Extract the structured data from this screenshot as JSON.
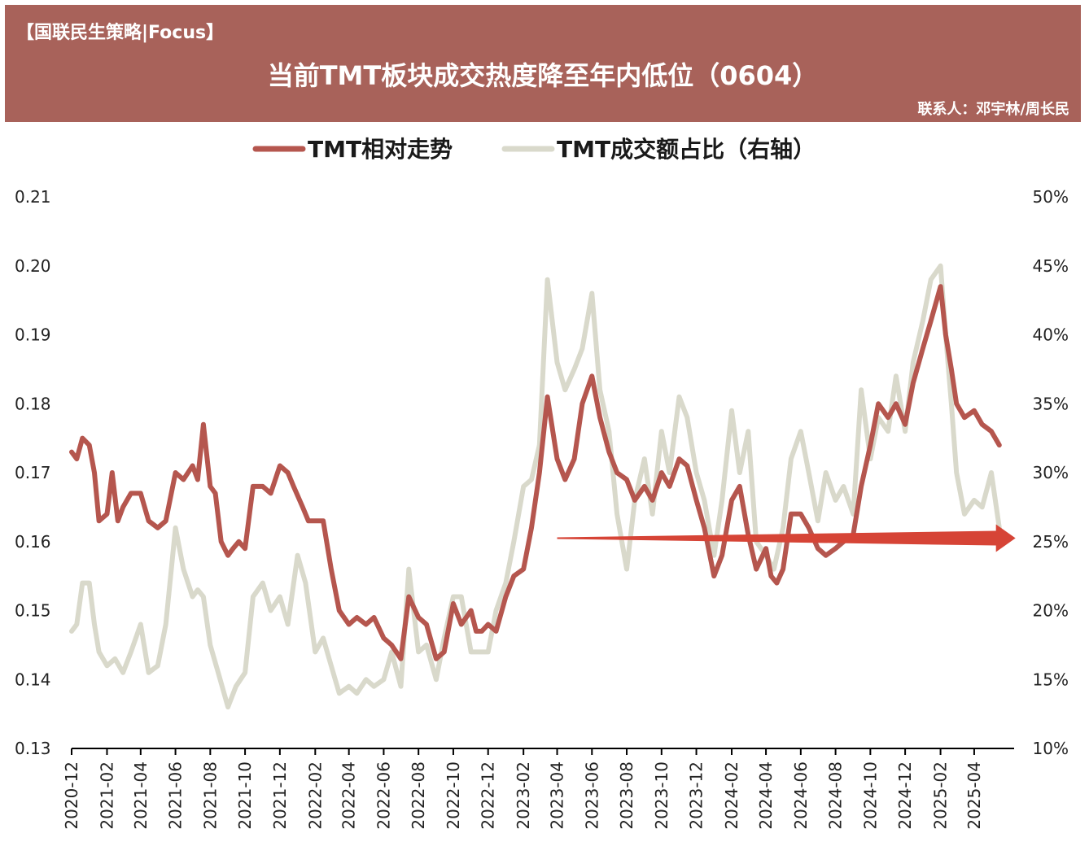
{
  "header": {
    "tag": "【国联民生策略|Focus】",
    "title": "当前TMT板块成交热度降至年内低位（0604）",
    "contact": "联系人：邓宇林/周长民"
  },
  "colors": {
    "banner": "#A8625A",
    "series_relative": "#B5564E",
    "series_share": "#D9D9CB",
    "arrow": "#D64436"
  },
  "chart_data": {
    "type": "line",
    "title": "当前TMT板块成交热度降至年内低位（0604）",
    "legend_position": "top",
    "grid": false,
    "x_labels": [
      "2020-12",
      "2021-02",
      "2021-04",
      "2021-06",
      "2021-08",
      "2021-10",
      "2021-12",
      "2022-02",
      "2022-04",
      "2022-06",
      "2022-08",
      "2022-10",
      "2022-12",
      "2023-02",
      "2023-04",
      "2023-06",
      "2023-08",
      "2023-10",
      "2023-12",
      "2024-02",
      "2024-04",
      "2024-06",
      "2024-08",
      "2024-10",
      "2024-12",
      "2025-02",
      "2025-04"
    ],
    "y_left": {
      "min": 0.13,
      "max": 0.21,
      "ticks": [
        "0.21",
        "0.20",
        "0.19",
        "0.18",
        "0.17",
        "0.16",
        "0.15",
        "0.14",
        "0.13"
      ]
    },
    "y_right": {
      "min": 10,
      "max": 50,
      "ticks": [
        "50%",
        "45%",
        "40%",
        "35%",
        "30%",
        "25%",
        "20%",
        "15%",
        "10%"
      ]
    },
    "series": [
      {
        "name": "TMT相对走势",
        "axis": "left",
        "color": "#B5564E",
        "points": [
          [
            "2020-12-01",
            0.173
          ],
          [
            "2020-12-10",
            0.172
          ],
          [
            "2020-12-20",
            0.175
          ],
          [
            "2021-01-01",
            0.174
          ],
          [
            "2021-01-10",
            0.17
          ],
          [
            "2021-01-18",
            0.163
          ],
          [
            "2021-02-01",
            0.164
          ],
          [
            "2021-02-10",
            0.17
          ],
          [
            "2021-02-20",
            0.163
          ],
          [
            "2021-03-01",
            0.165
          ],
          [
            "2021-03-15",
            0.167
          ],
          [
            "2021-04-01",
            0.167
          ],
          [
            "2021-04-15",
            0.163
          ],
          [
            "2021-05-01",
            0.162
          ],
          [
            "2021-05-15",
            0.163
          ],
          [
            "2021-06-01",
            0.17
          ],
          [
            "2021-06-15",
            0.169
          ],
          [
            "2021-07-01",
            0.171
          ],
          [
            "2021-07-10",
            0.169
          ],
          [
            "2021-07-20",
            0.177
          ],
          [
            "2021-08-01",
            0.168
          ],
          [
            "2021-08-10",
            0.167
          ],
          [
            "2021-08-20",
            0.16
          ],
          [
            "2021-09-01",
            0.158
          ],
          [
            "2021-09-10",
            0.159
          ],
          [
            "2021-09-20",
            0.16
          ],
          [
            "2021-10-01",
            0.159
          ],
          [
            "2021-10-15",
            0.168
          ],
          [
            "2021-11-01",
            0.168
          ],
          [
            "2021-11-15",
            0.167
          ],
          [
            "2021-12-01",
            0.171
          ],
          [
            "2021-12-15",
            0.17
          ],
          [
            "2021-12-25",
            0.168
          ],
          [
            "2022-01-10",
            0.165
          ],
          [
            "2022-01-20",
            0.163
          ],
          [
            "2022-02-01",
            0.163
          ],
          [
            "2022-02-15",
            0.163
          ],
          [
            "2022-03-01",
            0.156
          ],
          [
            "2022-03-15",
            0.15
          ],
          [
            "2022-04-01",
            0.148
          ],
          [
            "2022-04-15",
            0.149
          ],
          [
            "2022-05-01",
            0.148
          ],
          [
            "2022-05-15",
            0.149
          ],
          [
            "2022-06-01",
            0.146
          ],
          [
            "2022-06-15",
            0.145
          ],
          [
            "2022-07-01",
            0.143
          ],
          [
            "2022-07-15",
            0.152
          ],
          [
            "2022-08-01",
            0.149
          ],
          [
            "2022-08-15",
            0.148
          ],
          [
            "2022-09-01",
            0.143
          ],
          [
            "2022-09-15",
            0.144
          ],
          [
            "2022-10-01",
            0.151
          ],
          [
            "2022-10-15",
            0.148
          ],
          [
            "2022-11-01",
            0.15
          ],
          [
            "2022-11-10",
            0.147
          ],
          [
            "2022-11-20",
            0.147
          ],
          [
            "2022-12-01",
            0.148
          ],
          [
            "2022-12-15",
            0.147
          ],
          [
            "2023-01-01",
            0.152
          ],
          [
            "2023-01-15",
            0.155
          ],
          [
            "2023-02-01",
            0.156
          ],
          [
            "2023-02-15",
            0.162
          ],
          [
            "2023-03-01",
            0.17
          ],
          [
            "2023-03-15",
            0.181
          ],
          [
            "2023-04-01",
            0.172
          ],
          [
            "2023-04-15",
            0.169
          ],
          [
            "2023-05-01",
            0.172
          ],
          [
            "2023-05-15",
            0.18
          ],
          [
            "2023-06-01",
            0.184
          ],
          [
            "2023-06-15",
            0.178
          ],
          [
            "2023-07-01",
            0.173
          ],
          [
            "2023-07-15",
            0.17
          ],
          [
            "2023-08-01",
            0.169
          ],
          [
            "2023-08-15",
            0.166
          ],
          [
            "2023-09-01",
            0.168
          ],
          [
            "2023-09-15",
            0.166
          ],
          [
            "2023-10-01",
            0.17
          ],
          [
            "2023-10-15",
            0.168
          ],
          [
            "2023-11-01",
            0.172
          ],
          [
            "2023-11-15",
            0.171
          ],
          [
            "2023-12-01",
            0.166
          ],
          [
            "2023-12-15",
            0.162
          ],
          [
            "2024-01-01",
            0.155
          ],
          [
            "2024-01-15",
            0.158
          ],
          [
            "2024-02-01",
            0.166
          ],
          [
            "2024-02-15",
            0.168
          ],
          [
            "2024-03-01",
            0.161
          ],
          [
            "2024-03-15",
            0.156
          ],
          [
            "2024-04-01",
            0.159
          ],
          [
            "2024-04-10",
            0.155
          ],
          [
            "2024-04-20",
            0.154
          ],
          [
            "2024-05-01",
            0.156
          ],
          [
            "2024-05-15",
            0.164
          ],
          [
            "2024-06-01",
            0.164
          ],
          [
            "2024-06-15",
            0.162
          ],
          [
            "2024-07-01",
            0.159
          ],
          [
            "2024-07-15",
            0.158
          ],
          [
            "2024-08-01",
            0.159
          ],
          [
            "2024-08-15",
            0.16
          ],
          [
            "2024-09-01",
            0.161
          ],
          [
            "2024-09-15",
            0.168
          ],
          [
            "2024-10-01",
            0.174
          ],
          [
            "2024-10-15",
            0.18
          ],
          [
            "2024-11-01",
            0.178
          ],
          [
            "2024-11-15",
            0.18
          ],
          [
            "2024-12-01",
            0.177
          ],
          [
            "2024-12-15",
            0.183
          ],
          [
            "2025-01-01",
            0.188
          ],
          [
            "2025-01-15",
            0.192
          ],
          [
            "2025-02-01",
            0.197
          ],
          [
            "2025-02-10",
            0.19
          ],
          [
            "2025-02-20",
            0.185
          ],
          [
            "2025-03-01",
            0.18
          ],
          [
            "2025-03-15",
            0.178
          ],
          [
            "2025-04-01",
            0.179
          ],
          [
            "2025-04-15",
            0.177
          ],
          [
            "2025-05-01",
            0.176
          ],
          [
            "2025-05-15",
            0.174
          ]
        ]
      },
      {
        "name": "TMT成交额占比（右轴）",
        "axis": "right",
        "color": "#D9D9CB",
        "points": [
          [
            "2020-12-01",
            18.5
          ],
          [
            "2020-12-10",
            19.0
          ],
          [
            "2020-12-20",
            22.0
          ],
          [
            "2021-01-01",
            22.0
          ],
          [
            "2021-01-10",
            19.0
          ],
          [
            "2021-01-18",
            17.0
          ],
          [
            "2021-02-01",
            16.0
          ],
          [
            "2021-02-15",
            16.5
          ],
          [
            "2021-03-01",
            15.5
          ],
          [
            "2021-03-15",
            17.0
          ],
          [
            "2021-04-01",
            19.0
          ],
          [
            "2021-04-15",
            15.5
          ],
          [
            "2021-05-01",
            16.0
          ],
          [
            "2021-05-15",
            19.0
          ],
          [
            "2021-06-01",
            26.0
          ],
          [
            "2021-06-15",
            23.0
          ],
          [
            "2021-07-01",
            21.0
          ],
          [
            "2021-07-10",
            21.5
          ],
          [
            "2021-07-20",
            21.0
          ],
          [
            "2021-08-01",
            17.5
          ],
          [
            "2021-08-15",
            15.5
          ],
          [
            "2021-09-01",
            13.0
          ],
          [
            "2021-09-15",
            14.5
          ],
          [
            "2021-10-01",
            15.5
          ],
          [
            "2021-10-15",
            21.0
          ],
          [
            "2021-11-01",
            22.0
          ],
          [
            "2021-11-15",
            20.0
          ],
          [
            "2021-12-01",
            21.0
          ],
          [
            "2021-12-15",
            19.0
          ],
          [
            "2022-01-01",
            24.0
          ],
          [
            "2022-01-15",
            22.0
          ],
          [
            "2022-02-01",
            17.0
          ],
          [
            "2022-02-15",
            18.0
          ],
          [
            "2022-03-01",
            16.0
          ],
          [
            "2022-03-15",
            14.0
          ],
          [
            "2022-04-01",
            14.5
          ],
          [
            "2022-04-15",
            14.0
          ],
          [
            "2022-05-01",
            15.0
          ],
          [
            "2022-05-15",
            14.5
          ],
          [
            "2022-06-01",
            15.0
          ],
          [
            "2022-06-15",
            17.0
          ],
          [
            "2022-07-01",
            14.5
          ],
          [
            "2022-07-15",
            23.0
          ],
          [
            "2022-08-01",
            17.0
          ],
          [
            "2022-08-15",
            17.5
          ],
          [
            "2022-09-01",
            15.0
          ],
          [
            "2022-09-15",
            18.0
          ],
          [
            "2022-10-01",
            21.0
          ],
          [
            "2022-10-15",
            21.0
          ],
          [
            "2022-11-01",
            17.0
          ],
          [
            "2022-11-15",
            17.0
          ],
          [
            "2022-12-01",
            17.0
          ],
          [
            "2022-12-15",
            20.0
          ],
          [
            "2023-01-01",
            22.0
          ],
          [
            "2023-01-15",
            25.0
          ],
          [
            "2023-02-01",
            29.0
          ],
          [
            "2023-02-15",
            29.5
          ],
          [
            "2023-03-01",
            32.0
          ],
          [
            "2023-03-15",
            44.0
          ],
          [
            "2023-04-01",
            38.0
          ],
          [
            "2023-04-15",
            36.0
          ],
          [
            "2023-05-01",
            37.5
          ],
          [
            "2023-05-15",
            39.0
          ],
          [
            "2023-06-01",
            43.0
          ],
          [
            "2023-06-15",
            36.0
          ],
          [
            "2023-07-01",
            33.0
          ],
          [
            "2023-07-15",
            27.0
          ],
          [
            "2023-08-01",
            23.0
          ],
          [
            "2023-08-15",
            28.0
          ],
          [
            "2023-09-01",
            31.0
          ],
          [
            "2023-09-15",
            27.0
          ],
          [
            "2023-10-01",
            33.0
          ],
          [
            "2023-10-15",
            30.0
          ],
          [
            "2023-11-01",
            35.5
          ],
          [
            "2023-11-15",
            34.0
          ],
          [
            "2023-12-01",
            30.0
          ],
          [
            "2023-12-15",
            28.0
          ],
          [
            "2024-01-01",
            24.0
          ],
          [
            "2024-01-15",
            28.0
          ],
          [
            "2024-02-01",
            34.5
          ],
          [
            "2024-02-15",
            30.0
          ],
          [
            "2024-03-01",
            33.0
          ],
          [
            "2024-03-15",
            25.0
          ],
          [
            "2024-04-01",
            24.0
          ],
          [
            "2024-04-15",
            23.0
          ],
          [
            "2024-05-01",
            26.0
          ],
          [
            "2024-05-15",
            31.0
          ],
          [
            "2024-06-01",
            33.0
          ],
          [
            "2024-06-15",
            30.0
          ],
          [
            "2024-07-01",
            26.5
          ],
          [
            "2024-07-15",
            30.0
          ],
          [
            "2024-08-01",
            28.0
          ],
          [
            "2024-08-15",
            29.0
          ],
          [
            "2024-09-01",
            27.0
          ],
          [
            "2024-09-15",
            36.0
          ],
          [
            "2024-10-01",
            31.0
          ],
          [
            "2024-10-15",
            34.0
          ],
          [
            "2024-11-01",
            33.0
          ],
          [
            "2024-11-15",
            37.0
          ],
          [
            "2024-12-01",
            33.0
          ],
          [
            "2024-12-15",
            38.0
          ],
          [
            "2025-01-01",
            41.0
          ],
          [
            "2025-01-15",
            44.0
          ],
          [
            "2025-02-01",
            45.0
          ],
          [
            "2025-02-10",
            40.0
          ],
          [
            "2025-02-20",
            35.0
          ],
          [
            "2025-03-01",
            30.0
          ],
          [
            "2025-03-15",
            27.0
          ],
          [
            "2025-04-01",
            28.0
          ],
          [
            "2025-04-15",
            27.5
          ],
          [
            "2025-05-01",
            30.0
          ],
          [
            "2025-05-15",
            26.0
          ]
        ]
      }
    ],
    "annotation_arrow": {
      "from": [
        "2023-04-01",
        0.1605
      ],
      "to": [
        "2025-06-01",
        0.1605
      ]
    }
  }
}
